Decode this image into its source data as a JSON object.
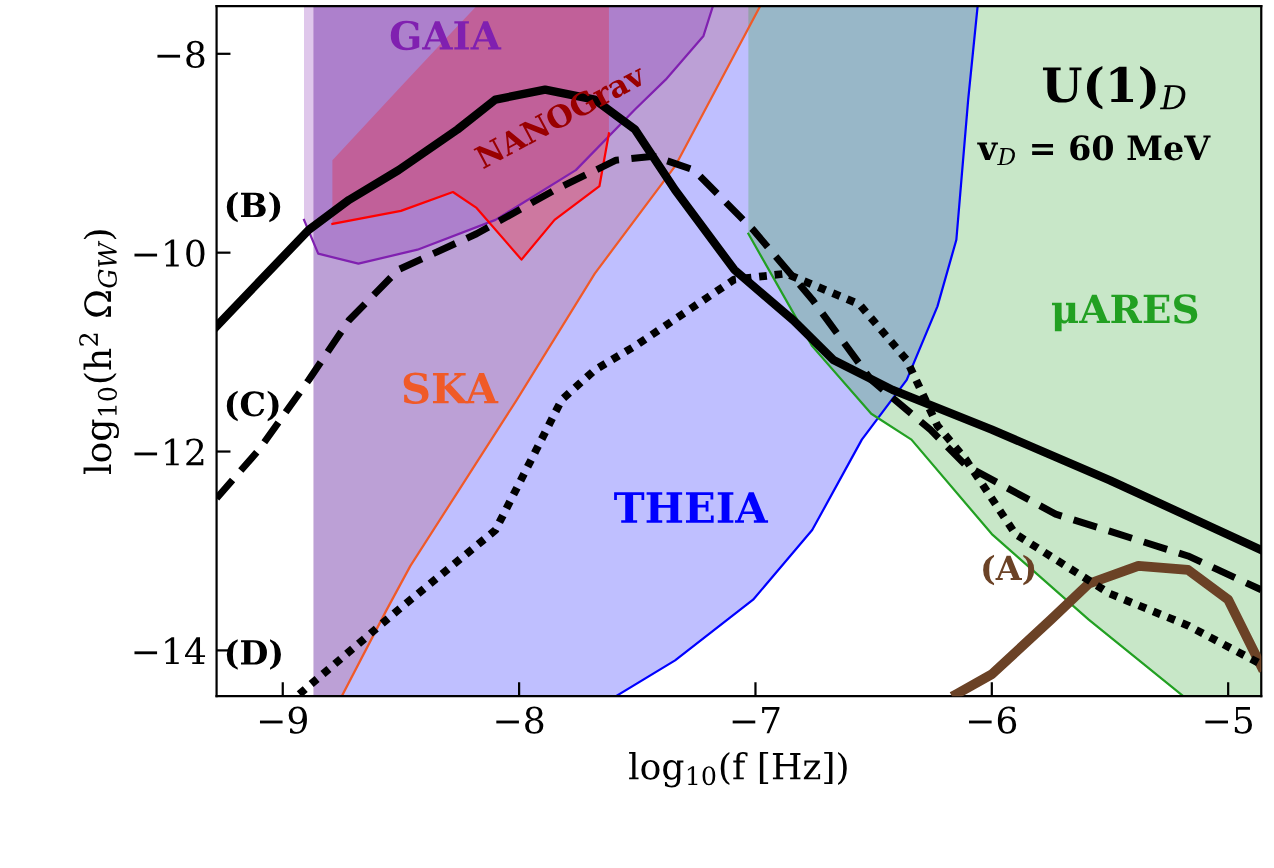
{
  "chart_data": {
    "type": "line",
    "xlabel": "log$_{10}$(f [Hz])",
    "ylabel": "log$_{10}$(h$^{2}$ Ω$_{GW}$)",
    "xlim": [
      -9.28,
      -4.86
    ],
    "ylim": [
      -14.46,
      -7.52
    ],
    "xticks": [
      {
        "value": -9,
        "label": "−9"
      },
      {
        "value": -8,
        "label": "−8"
      },
      {
        "value": -7,
        "label": "−7"
      },
      {
        "value": -6,
        "label": "−6"
      },
      {
        "value": -5,
        "label": "−5"
      }
    ],
    "yticks": [
      {
        "value": -14,
        "label": "−14"
      },
      {
        "value": -12,
        "label": "−12"
      },
      {
        "value": -10,
        "label": "−10"
      },
      {
        "value": -8,
        "label": "−8"
      }
    ],
    "grid": false,
    "legend": false,
    "annotations": [
      "U(1)$_{D}$",
      "v$_{D}$ = 60 MeV"
    ],
    "series": [
      {
        "name": "SKA",
        "color": "#f05a28",
        "x": [
          -8.87,
          -8.75,
          -8.56,
          -8.46,
          -8.01,
          -7.68,
          -7.34,
          -6.98
        ],
        "values": [
          null,
          -14.46,
          -13.59,
          -13.15,
          -11.48,
          -10.21,
          -9.13,
          -7.52
        ],
        "lower": [
          -14.46,
          -14.46,
          -13.59,
          -13.15,
          -11.48,
          -10.21,
          -9.13,
          -7.52
        ],
        "upper": [
          -7.52,
          -7.52,
          -7.52,
          -7.52,
          -7.52,
          -7.52,
          -7.52,
          -7.52
        ]
      },
      {
        "name": "THEIA",
        "color": "#0000ff",
        "x": [
          -8.87,
          -7.59,
          -7.34,
          -7.01,
          -6.76,
          -6.55,
          -6.36,
          -6.23,
          -6.15,
          -6.1,
          -6.06
        ],
        "values": [
          null,
          -14.46,
          -14.1,
          -13.49,
          -12.79,
          -11.88,
          -11.28,
          -10.54,
          -9.87,
          -8.46,
          -7.52
        ],
        "lower": [
          -14.46,
          -14.46,
          -14.1,
          -13.49,
          -12.79,
          -11.88,
          -11.28,
          -10.54,
          -9.87,
          -8.46,
          -7.52
        ],
        "upper": [
          -7.52,
          -7.52,
          -7.52,
          -7.52,
          -7.52,
          -7.52,
          -7.52,
          -7.52,
          -7.52,
          -7.52,
          -7.52
        ]
      },
      {
        "name": "μARES",
        "color": "#22a022",
        "x": [
          -7.03,
          -6.76,
          -6.51,
          -6.34,
          -6.0,
          -5.59,
          -5.19,
          -4.86
        ],
        "values": [
          -9.81,
          -10.94,
          -11.62,
          -11.88,
          -12.83,
          -13.69,
          -14.46,
          null
        ],
        "lower": [
          -9.81,
          -10.94,
          -11.62,
          -11.88,
          -12.83,
          -13.69,
          -14.46,
          -14.46
        ],
        "upper": [
          -7.52,
          -7.52,
          -7.52,
          -7.52,
          -7.52,
          -7.52,
          -7.52,
          -7.52
        ]
      },
      {
        "name": "GAIA",
        "color": "#8020b0",
        "x": [
          -8.91,
          -8.85,
          -8.68,
          -8.43,
          -8.1,
          -7.76,
          -7.51,
          -7.38,
          -7.22,
          -7.18
        ],
        "values": [
          -9.67,
          -10.01,
          -10.11,
          -9.97,
          -9.67,
          -9.17,
          -8.56,
          -8.26,
          -7.82,
          -7.52
        ],
        "lower": [
          -9.67,
          -10.01,
          -10.11,
          -9.97,
          -9.67,
          -9.17,
          -8.56,
          -8.26,
          -7.82,
          -7.52
        ],
        "upper": [
          -7.52,
          -7.52,
          -7.52,
          -7.52,
          -7.52,
          -7.52,
          -7.52,
          -7.52,
          -7.52,
          -7.52
        ]
      },
      {
        "name": "NANOGrav",
        "color": "#ff0000",
        "x": [
          -8.79,
          -8.5,
          -8.28,
          -8.18,
          -7.99,
          -7.85,
          -7.66,
          -7.62
        ],
        "values": [
          -9.71,
          -9.58,
          -9.39,
          -9.55,
          -10.07,
          -9.67,
          -9.33,
          -8.8
        ],
        "lower": [
          -9.71,
          -9.58,
          -9.39,
          -9.55,
          -10.07,
          -9.67,
          -9.33,
          -8.8
        ],
        "upper": [
          -9.07,
          -8.33,
          -7.77,
          -7.52,
          -7.52,
          -7.52,
          -7.52,
          -7.52
        ]
      },
      {
        "name": "(A)",
        "color": "#6b4226",
        "line_style": "solid",
        "x": [
          -6.15,
          -6.0,
          -5.75,
          -5.59,
          -5.38,
          -5.17,
          -5.0,
          -4.86
        ],
        "values": [
          -14.44,
          -14.24,
          -13.69,
          -13.33,
          -13.15,
          -13.19,
          -13.49,
          -14.16
        ]
      },
      {
        "name": "(B)",
        "color": "#000000",
        "line_style": "solid",
        "x": [
          -9.28,
          -8.89,
          -8.72,
          -8.51,
          -8.26,
          -8.1,
          -7.89,
          -7.68,
          -7.51,
          -7.34,
          -7.09,
          -6.84,
          -6.67,
          -6.42,
          -6.0,
          -5.5,
          -4.86
        ],
        "values": [
          -10.74,
          -9.77,
          -9.47,
          -9.17,
          -8.76,
          -8.46,
          -8.36,
          -8.46,
          -8.76,
          -9.37,
          -10.17,
          -10.68,
          -11.08,
          -11.38,
          -11.78,
          -12.29,
          -12.99
        ]
      },
      {
        "name": "(C)",
        "color": "#000000",
        "line_style": "dashed",
        "x": [
          -9.28,
          -9.1,
          -8.89,
          -8.72,
          -8.51,
          -8.18,
          -7.85,
          -7.59,
          -7.43,
          -7.26,
          -7.01,
          -6.76,
          -6.51,
          -6.26,
          -6.11,
          -5.73,
          -5.17,
          -4.86
        ],
        "values": [
          -12.47,
          -11.98,
          -11.28,
          -10.68,
          -10.17,
          -9.81,
          -9.37,
          -9.07,
          -9.03,
          -9.17,
          -9.77,
          -10.47,
          -11.28,
          -11.78,
          -12.14,
          -12.63,
          -13.05,
          -13.39
        ]
      },
      {
        "name": "(D)",
        "color": "#000000",
        "line_style": "dotted",
        "x": [
          -8.93,
          -8.51,
          -8.1,
          -7.82,
          -7.68,
          -7.51,
          -7.09,
          -6.87,
          -6.56,
          -6.36,
          -6.23,
          -6.11,
          -5.9,
          -5.5,
          -5.17,
          -4.86
        ],
        "values": [
          -14.44,
          -13.59,
          -12.79,
          -11.48,
          -11.18,
          -10.94,
          -10.27,
          -10.21,
          -10.52,
          -11.08,
          -11.74,
          -12.08,
          -12.83,
          -13.43,
          -13.75,
          -14.14
        ]
      }
    ]
  }
}
